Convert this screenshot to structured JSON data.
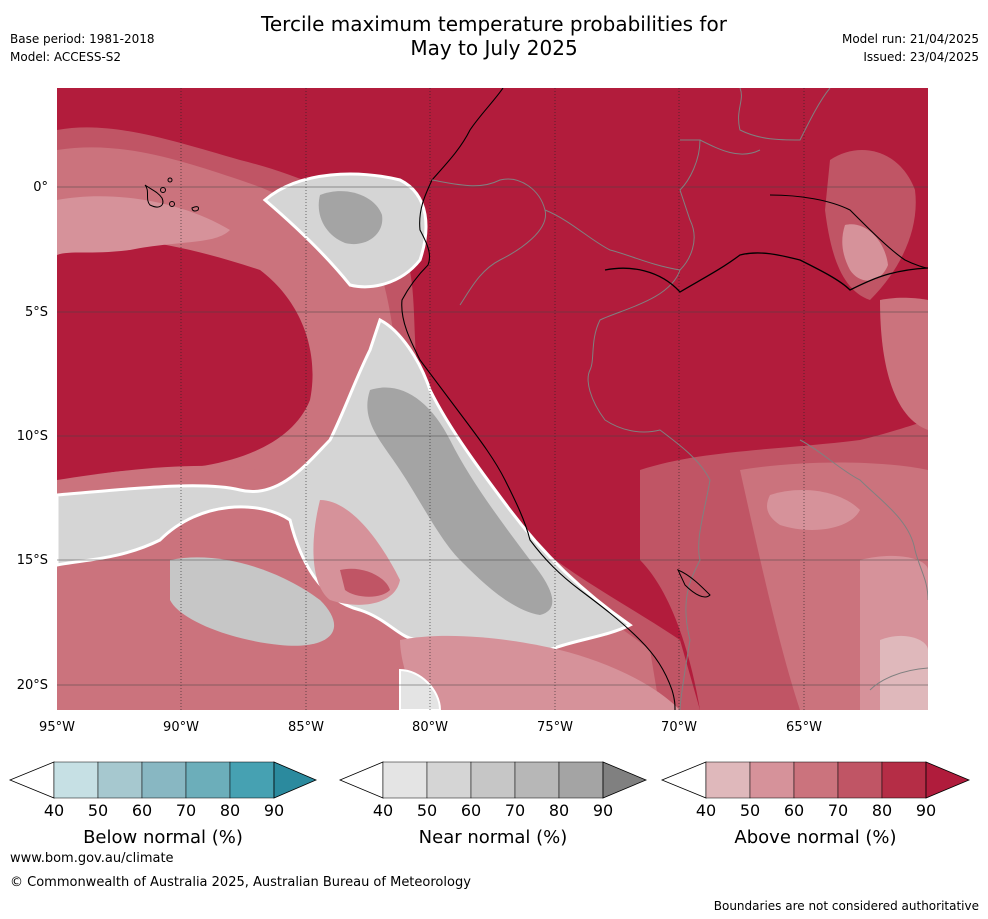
{
  "header": {
    "title_line1": "Tercile maximum temperature probabilities for",
    "title_line2": "May to July 2025",
    "base_period": "Base period: 1981-2018",
    "model": "Model: ACCESS-S2",
    "model_run": "Model run: 21/04/2025",
    "issued": "Issued: 23/04/2025"
  },
  "map": {
    "lat_labels": [
      "0°",
      "5°S",
      "10°S",
      "15°S",
      "20°S"
    ],
    "lon_labels": [
      "95°W",
      "90°W",
      "85°W",
      "80°W",
      "75°W",
      "70°W",
      "65°W"
    ]
  },
  "legends": [
    {
      "label": "Below normal (%)",
      "ticks": [
        "40",
        "50",
        "60",
        "70",
        "80",
        "90"
      ],
      "colors": [
        "#ffffff",
        "#c6e0e4",
        "#a6c8cf",
        "#88b7c2",
        "#6caeba",
        "#46a1b2",
        "#2b8a9e"
      ]
    },
    {
      "label": "Near normal (%)",
      "ticks": [
        "40",
        "50",
        "60",
        "70",
        "80",
        "90"
      ],
      "colors": [
        "#ffffff",
        "#e4e4e4",
        "#d5d5d5",
        "#c6c6c6",
        "#b7b7b7",
        "#a4a4a4",
        "#808080"
      ]
    },
    {
      "label": "Above normal (%)",
      "ticks": [
        "40",
        "50",
        "60",
        "70",
        "80",
        "90"
      ],
      "colors": [
        "#ffffff",
        "#dfb8bb",
        "#d6929a",
        "#cb737d",
        "#c05565",
        "#b52d46",
        "#b01c3c"
      ]
    }
  ],
  "footer": {
    "url": "www.bom.gov.au/climate",
    "copyright": "© Commonwealth of Australia 2025, Australian Bureau of Meteorology",
    "disclaimer": "Boundaries are not considered authoritative"
  }
}
